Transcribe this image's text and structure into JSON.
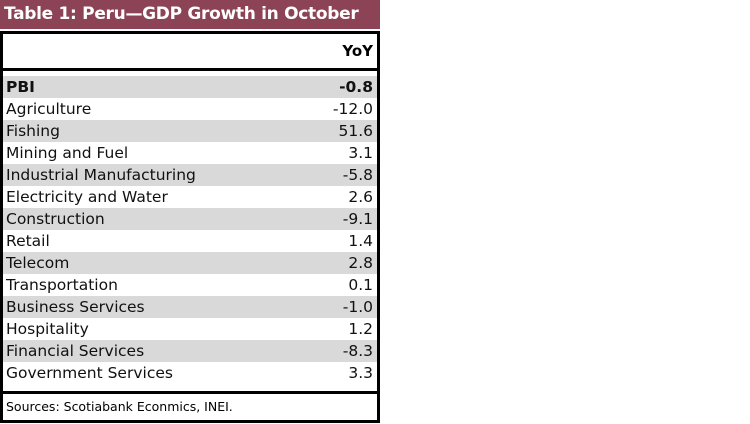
{
  "title": "Table 1: Peru—GDP Growth in October",
  "column_header": "YoY",
  "rows": [
    {
      "label": "PBI",
      "value": "-0.8",
      "bold": true
    },
    {
      "label": "Agriculture",
      "value": "-12.0"
    },
    {
      "label": "Fishing",
      "value": "51.6"
    },
    {
      "label": "Mining and Fuel",
      "value": "3.1"
    },
    {
      "label": "Industrial Manufacturing",
      "value": "-5.8"
    },
    {
      "label": "Electricity and Water",
      "value": "2.6"
    },
    {
      "label": "Construction",
      "value": "-9.1"
    },
    {
      "label": "Retail",
      "value": "1.4"
    },
    {
      "label": "Telecom",
      "value": "2.8"
    },
    {
      "label": "Transportation",
      "value": "0.1"
    },
    {
      "label": "Business Services",
      "value": "-1.0"
    },
    {
      "label": "Hospitality",
      "value": "1.2"
    },
    {
      "label": "Financial Services",
      "value": "-8.3"
    },
    {
      "label": "Government Services",
      "value": "3.3"
    }
  ],
  "source": "Sources: Scotiabank Econmics, INEI.",
  "colors": {
    "title_bg": "#8c4356",
    "stripe": "#d9d9d9"
  }
}
